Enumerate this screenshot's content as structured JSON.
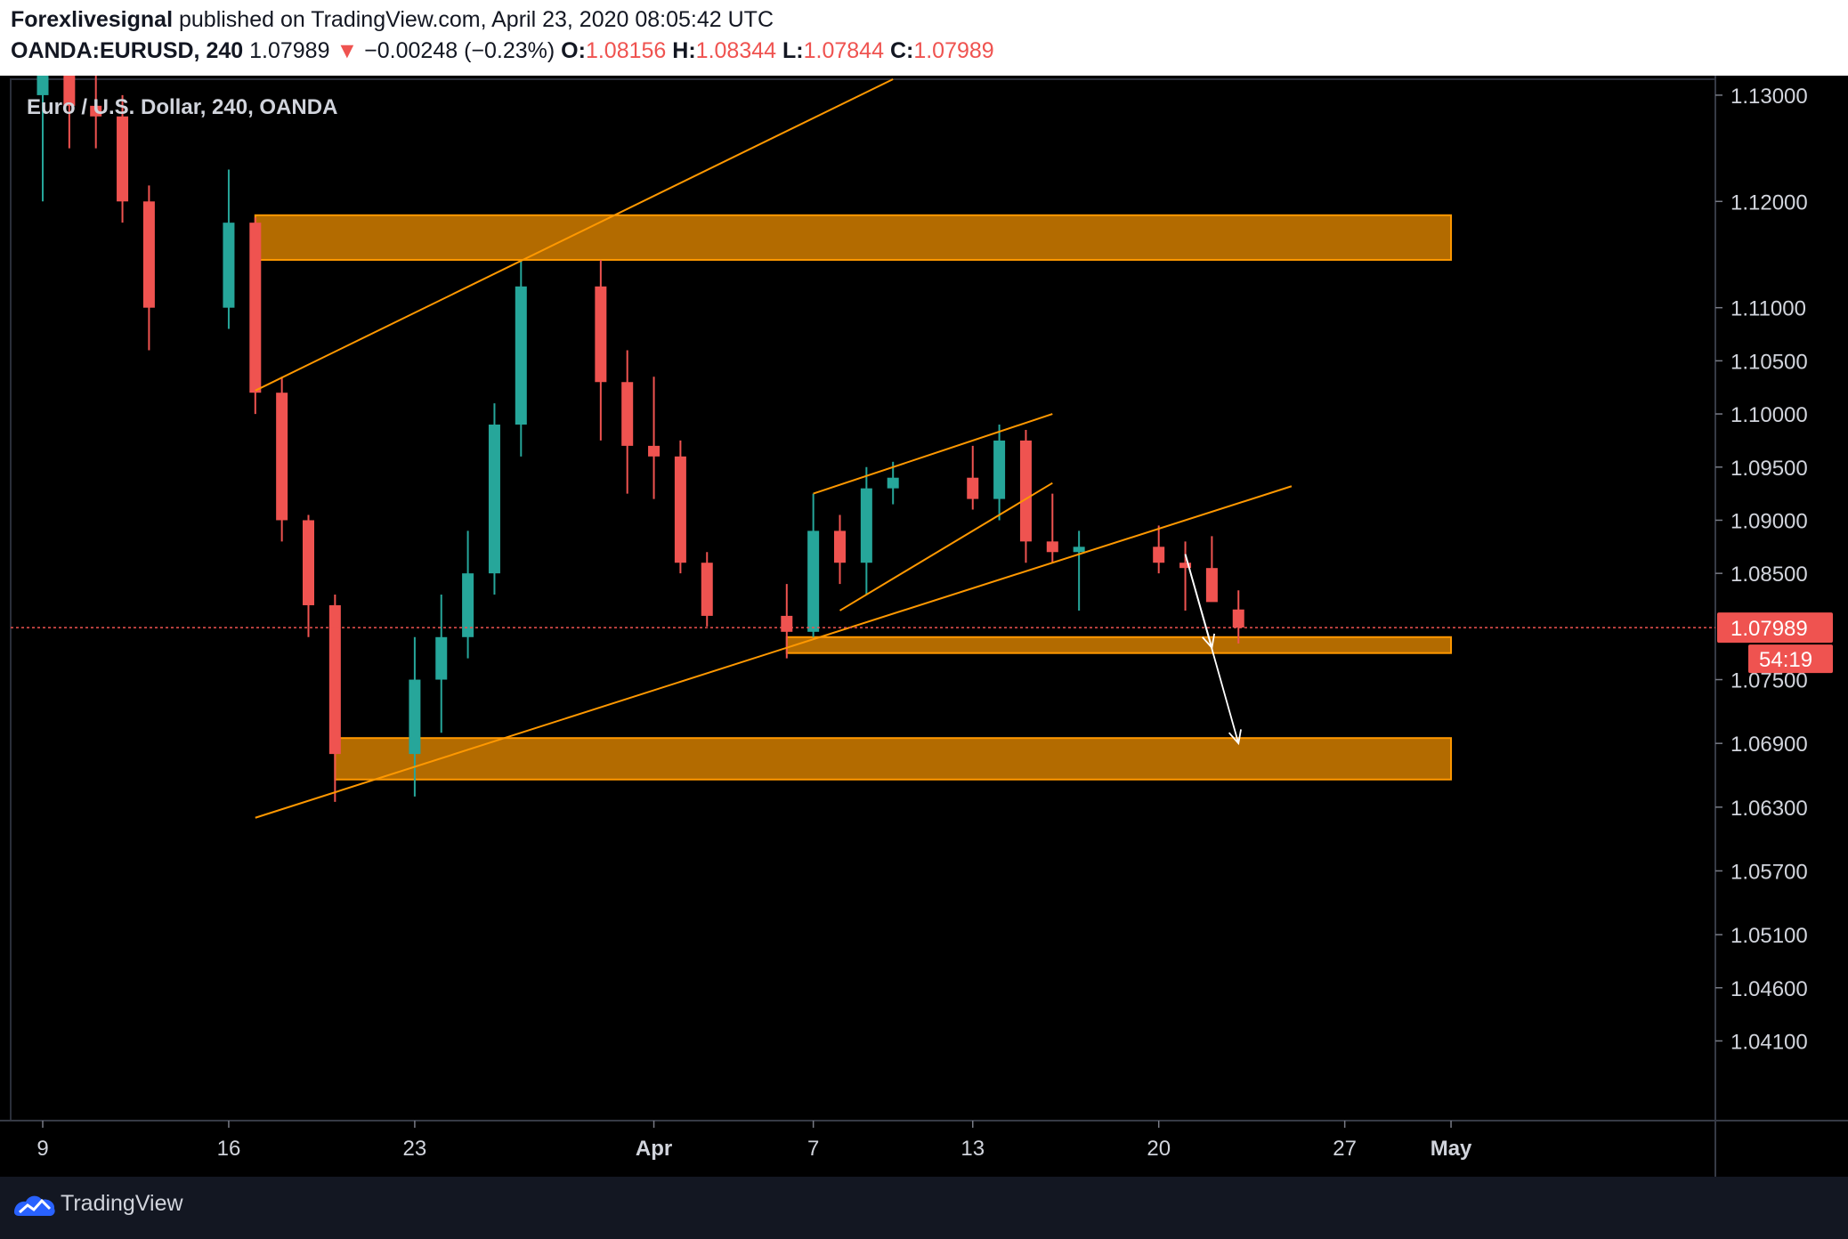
{
  "header": {
    "author": "Forexlivesignal",
    "published": " published on TradingView.com, April 23, 2020 08:05:42 UTC",
    "symbol": "OANDA:EURUSD, 240",
    "last": "1.07989",
    "arrow": "▼",
    "change": "−0.00248 (−0.23%)",
    "o_label": "O:",
    "o_val": "1.08156",
    "h_label": "H:",
    "h_val": "1.08344",
    "l_label": "L:",
    "l_val": "1.07844",
    "c_label": "C:",
    "c_val": "1.07989"
  },
  "footer": {
    "brand": "TradingView",
    "logo_icon": "tradingview-logo-icon"
  },
  "colors": {
    "up": "#26a69a",
    "down": "#ef5350",
    "zone_fill": "#b36b00",
    "zone_border": "#ff9800",
    "trendline": "#ff9800",
    "arrow": "#ffffff",
    "background": "#000000"
  },
  "chart_data": {
    "type": "candlestick",
    "title": "Euro / U.S. Dollar, 240, OANDA",
    "price_ticks": [
      "1.13000",
      "1.12000",
      "1.11000",
      "1.10500",
      "1.10000",
      "1.09500",
      "1.09000",
      "1.08500",
      "1.07500",
      "1.06900",
      "1.06300",
      "1.05700",
      "1.05100",
      "1.04600",
      "1.04100"
    ],
    "date_ticks": [
      "9",
      "16",
      "23",
      "Apr",
      "7",
      "13",
      "20",
      "27",
      "May"
    ],
    "ylim": [
      1.0335,
      1.1315
    ],
    "last_price": "1.07989",
    "countdown": "54:19",
    "grid": false,
    "candles": [
      {
        "date": "2020-03-09",
        "o": 1.13,
        "h": 1.1385,
        "l": 1.12,
        "c": 1.1345
      },
      {
        "date": "2020-03-10",
        "o": 1.1345,
        "h": 1.135,
        "l": 1.125,
        "c": 1.129
      },
      {
        "date": "2020-03-11",
        "o": 1.129,
        "h": 1.1345,
        "l": 1.125,
        "c": 1.128
      },
      {
        "date": "2020-03-12",
        "o": 1.128,
        "h": 1.13,
        "l": 1.118,
        "c": 1.12
      },
      {
        "date": "2020-03-13",
        "o": 1.12,
        "h": 1.1215,
        "l": 1.106,
        "c": 1.11
      },
      {
        "date": "2020-03-16",
        "o": 1.11,
        "h": 1.123,
        "l": 1.108,
        "c": 1.118
      },
      {
        "date": "2020-03-17",
        "o": 1.118,
        "h": 1.1185,
        "l": 1.1,
        "c": 1.102
      },
      {
        "date": "2020-03-18",
        "o": 1.102,
        "h": 1.1035,
        "l": 1.088,
        "c": 1.09
      },
      {
        "date": "2020-03-19",
        "o": 1.09,
        "h": 1.0905,
        "l": 1.079,
        "c": 1.082
      },
      {
        "date": "2020-03-20",
        "o": 1.082,
        "h": 1.083,
        "l": 1.0635,
        "c": 1.068
      },
      {
        "date": "2020-03-23",
        "o": 1.068,
        "h": 1.079,
        "l": 1.064,
        "c": 1.075
      },
      {
        "date": "2020-03-24",
        "o": 1.075,
        "h": 1.083,
        "l": 1.07,
        "c": 1.079
      },
      {
        "date": "2020-03-25",
        "o": 1.079,
        "h": 1.089,
        "l": 1.077,
        "c": 1.085
      },
      {
        "date": "2020-03-26",
        "o": 1.085,
        "h": 1.101,
        "l": 1.083,
        "c": 1.099
      },
      {
        "date": "2020-03-27",
        "o": 1.099,
        "h": 1.1145,
        "l": 1.096,
        "c": 1.112
      },
      {
        "date": "2020-03-30",
        "o": 1.112,
        "h": 1.1145,
        "l": 1.0975,
        "c": 1.103
      },
      {
        "date": "2020-03-31",
        "o": 1.103,
        "h": 1.106,
        "l": 1.0925,
        "c": 1.097
      },
      {
        "date": "2020-04-01",
        "o": 1.097,
        "h": 1.1035,
        "l": 1.092,
        "c": 1.096
      },
      {
        "date": "2020-04-02",
        "o": 1.096,
        "h": 1.0975,
        "l": 1.085,
        "c": 1.086
      },
      {
        "date": "2020-04-03",
        "o": 1.086,
        "h": 1.087,
        "l": 1.08,
        "c": 1.081
      },
      {
        "date": "2020-04-06",
        "o": 1.081,
        "h": 1.084,
        "l": 1.077,
        "c": 1.0795
      },
      {
        "date": "2020-04-07",
        "o": 1.0795,
        "h": 1.0925,
        "l": 1.079,
        "c": 1.089
      },
      {
        "date": "2020-04-08",
        "o": 1.089,
        "h": 1.0905,
        "l": 1.084,
        "c": 1.086
      },
      {
        "date": "2020-04-09",
        "o": 1.086,
        "h": 1.095,
        "l": 1.083,
        "c": 1.093
      },
      {
        "date": "2020-04-10",
        "o": 1.093,
        "h": 1.0955,
        "l": 1.0915,
        "c": 1.094
      },
      {
        "date": "2020-04-13",
        "o": 1.094,
        "h": 1.097,
        "l": 1.091,
        "c": 1.092
      },
      {
        "date": "2020-04-14",
        "o": 1.092,
        "h": 1.099,
        "l": 1.09,
        "c": 1.0975
      },
      {
        "date": "2020-04-15",
        "o": 1.0975,
        "h": 1.0985,
        "l": 1.086,
        "c": 1.088
      },
      {
        "date": "2020-04-16",
        "o": 1.088,
        "h": 1.0925,
        "l": 1.086,
        "c": 1.087
      },
      {
        "date": "2020-04-17",
        "o": 1.087,
        "h": 1.089,
        "l": 1.0815,
        "c": 1.0875
      },
      {
        "date": "2020-04-20",
        "o": 1.0875,
        "h": 1.0895,
        "l": 1.085,
        "c": 1.086
      },
      {
        "date": "2020-04-21",
        "o": 1.086,
        "h": 1.088,
        "l": 1.0815,
        "c": 1.0855
      },
      {
        "date": "2020-04-22",
        "o": 1.0855,
        "h": 1.0885,
        "l": 1.083,
        "c": 1.0823
      },
      {
        "date": "2020-04-23",
        "o": 1.0816,
        "h": 1.0834,
        "l": 1.0784,
        "c": 1.0799
      }
    ],
    "zones": [
      {
        "name": "upper-zone",
        "start": "2020-03-17",
        "end": "2020-05-01",
        "low": 1.1145,
        "high": 1.1187
      },
      {
        "name": "middle-zone",
        "start": "2020-04-06",
        "end": "2020-05-01",
        "low": 1.0775,
        "high": 1.079
      },
      {
        "name": "lower-zone",
        "start": "2020-03-20",
        "end": "2020-05-01",
        "low": 1.0656,
        "high": 1.0695
      }
    ],
    "trendlines": [
      {
        "name": "upper-channel-line",
        "from": [
          "2020-03-17",
          1.1022
        ],
        "to": [
          "2020-04-10",
          1.1315
        ]
      },
      {
        "name": "lower-channel-line",
        "from": [
          "2020-03-17",
          1.062
        ],
        "to": [
          "2020-04-25",
          1.0932
        ]
      },
      {
        "name": "wedge-upper-line",
        "from": [
          "2020-04-07",
          1.0925
        ],
        "to": [
          "2020-04-16",
          1.1
        ]
      },
      {
        "name": "wedge-lower-line",
        "from": [
          "2020-04-08",
          1.0815
        ],
        "to": [
          "2020-04-16",
          1.0935
        ]
      }
    ],
    "arrows": [
      {
        "name": "projection-arrow-short",
        "from": [
          "2020-04-21",
          1.0868
        ],
        "to": [
          "2020-04-22",
          1.078
        ]
      },
      {
        "name": "projection-arrow-long",
        "from": [
          "2020-04-21",
          1.0868
        ],
        "to": [
          "2020-04-23",
          1.069
        ]
      }
    ]
  }
}
